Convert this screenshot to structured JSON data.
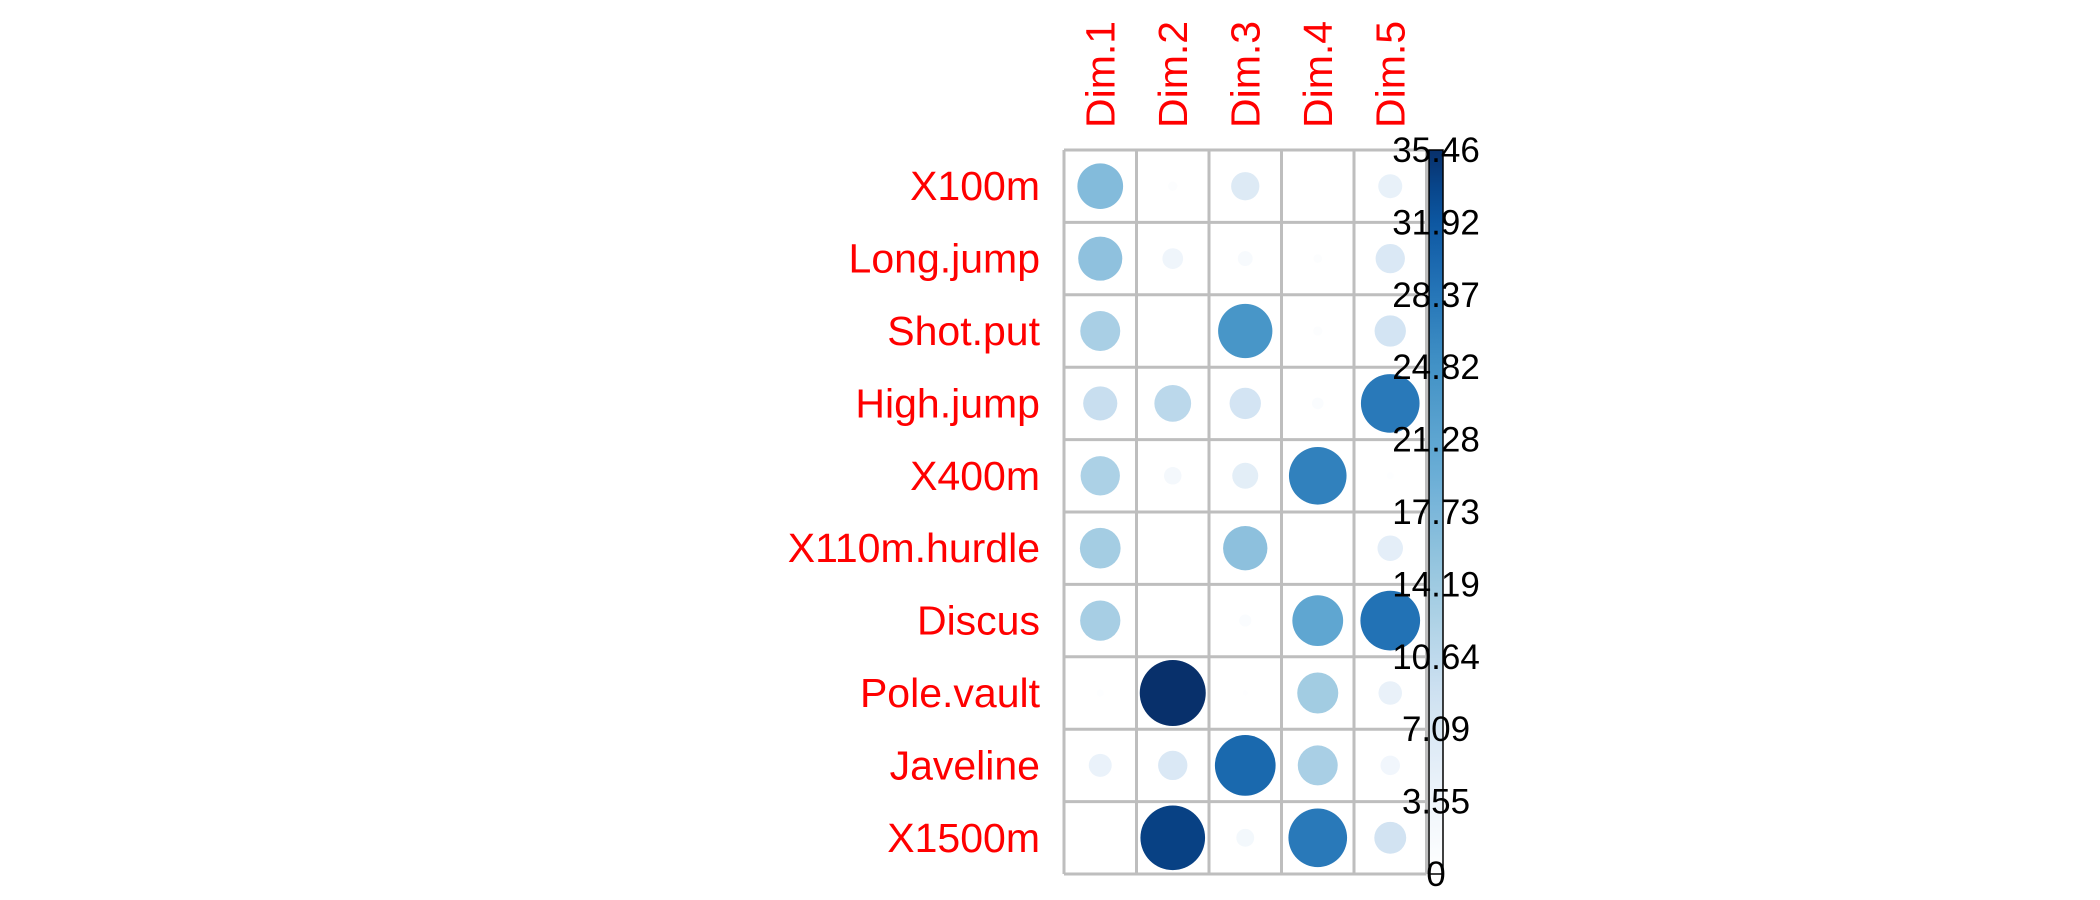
{
  "chart_data": {
    "type": "heatmap",
    "rows": [
      "X100m",
      "Long.jump",
      "Shot.put",
      "High.jump",
      "X400m",
      "X110m.hurdle",
      "Discus",
      "Pole.vault",
      "Javeline",
      "X1500m"
    ],
    "columns": [
      "Dim.1",
      "Dim.2",
      "Dim.3",
      "Dim.4",
      "Dim.5"
    ],
    "values": [
      [
        17.0,
        0.7,
        6.5,
        0.0,
        4.7
      ],
      [
        15.8,
        3.5,
        1.8,
        0.6,
        7.0
      ],
      [
        13.0,
        0.1,
        24.0,
        0.7,
        8.0
      ],
      [
        9.5,
        11.0,
        8.0,
        1.1,
        28.0
      ],
      [
        12.6,
        2.5,
        5.5,
        27.0,
        0.4
      ],
      [
        13.5,
        0.0,
        16.0,
        0.0,
        5.3
      ],
      [
        13.2,
        0.0,
        1.2,
        21.0,
        29.0
      ],
      [
        0.4,
        35.46,
        0.2,
        13.7,
        4.5
      ],
      [
        4.3,
        7.0,
        30.0,
        13.0,
        3.1
      ],
      [
        0.0,
        34.0,
        2.6,
        28.0,
        8.3
      ]
    ],
    "color_scale": {
      "min": 0,
      "max": 35.46,
      "labels": [
        "0",
        "3.55",
        "7.09",
        "10.64",
        "14.19",
        "17.73",
        "21.28",
        "24.82",
        "28.37",
        "31.92",
        "35.46"
      ],
      "low_color": "#ffffff",
      "high_color": "#08306b"
    },
    "label_color": "#ff0000",
    "grid_color": "#bebebe"
  }
}
